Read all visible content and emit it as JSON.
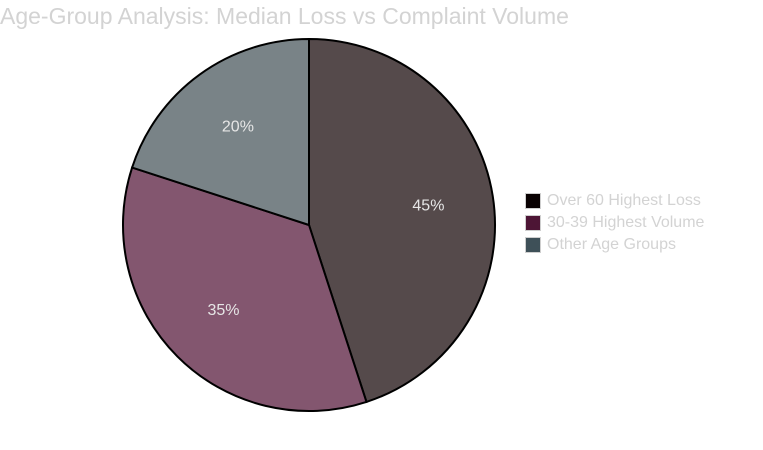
{
  "chart_data": {
    "type": "pie",
    "title": "Age-Group Analysis: Median Loss vs Complaint Volume",
    "slices": [
      {
        "name": "Over 60 Highest Loss",
        "value": 45,
        "label": "45%",
        "color": "#554a4b",
        "legend_color": "#0a0203"
      },
      {
        "name": "30-39 Highest Volume",
        "value": 35,
        "label": "35%",
        "color": "#83566f",
        "legend_color": "#4d1535"
      },
      {
        "name": "Other Age Groups",
        "value": 20,
        "label": "20%",
        "color": "#798387",
        "legend_color": "#3e5058"
      }
    ],
    "legend_position": "right"
  }
}
